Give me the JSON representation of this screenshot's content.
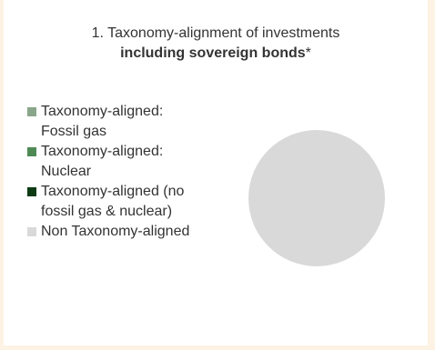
{
  "chart_data": {
    "type": "pie",
    "title_line1": "1. Taxonomy-alignment of investments",
    "title_line2_bold": "including sovereign bonds",
    "title_line2_suffix": "*",
    "legend_placement": "left",
    "series": [
      {
        "name": "Taxonomy-aligned: Fossil gas",
        "label_line1": "Taxonomy-aligned:",
        "label_line2": "Fossil gas",
        "value": 0,
        "color": "#8aa68a"
      },
      {
        "name": "Taxonomy-aligned: Nuclear",
        "label_line1": "Taxonomy-aligned:",
        "label_line2": "Nuclear",
        "value": 0,
        "color": "#4f8a55"
      },
      {
        "name": "Taxonomy-aligned (no fossil gas & nuclear)",
        "label_line1": "Taxonomy-aligned (no",
        "label_line2": "fossil gas & nuclear)",
        "value": 0,
        "color": "#0d3b14"
      },
      {
        "name": "Non Taxonomy-aligned",
        "label_line1": "Non Taxonomy-aligned",
        "label_line2": "",
        "value": 100,
        "color": "#d9d9d9"
      }
    ]
  }
}
